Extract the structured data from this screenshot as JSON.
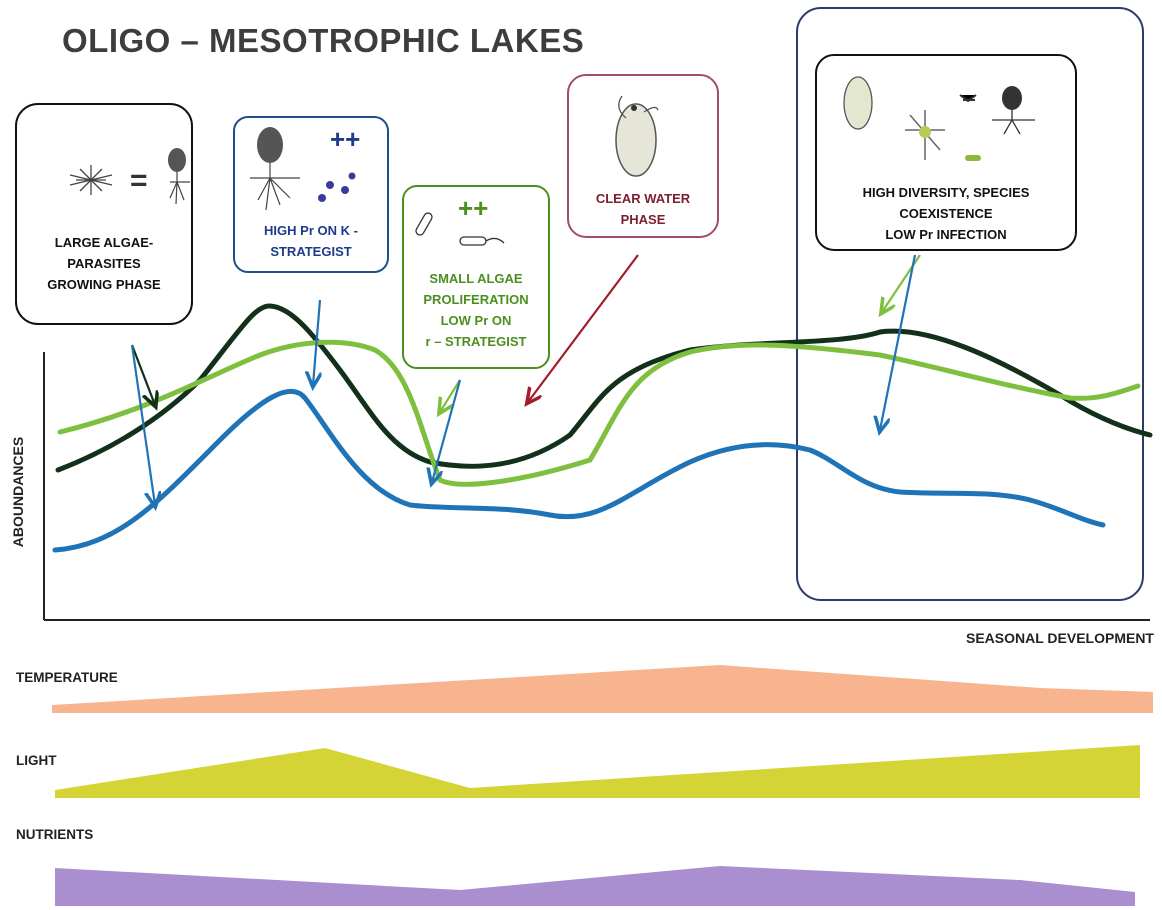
{
  "title": "OLIGO – MESOTROPHIC LAKES",
  "phases": [
    {
      "lines": [
        "LARGE ALGAE-",
        "PARASITES",
        "GROWING PHASE"
      ],
      "color": "#111111",
      "extra": "="
    },
    {
      "lines": [
        "HIGH Pr ON K -",
        "STRATEGIST"
      ],
      "color": "#1f3a8a",
      "extra": "++"
    },
    {
      "lines": [
        "SMALL ALGAE",
        "PROLIFERATION",
        "LOW Pr ON",
        "r – STRATEGIST"
      ],
      "color": "#4c8f1e",
      "extra": "++"
    },
    {
      "lines": [
        "CLEAR WATER",
        "PHASE"
      ],
      "color": "#7a1f2e",
      "extra": ""
    },
    {
      "lines": [
        "HIGH DIVERSITY, SPECIES",
        "COEXISTENCE",
        "LOW Pr INFECTION"
      ],
      "color": "#111111",
      "extra": ""
    }
  ],
  "axes": {
    "y_label": "ABOUNDANCES",
    "x_label": "SEASONAL DEVELOPMENT"
  },
  "curves": [
    {
      "key": "dark_green",
      "color": "#13301a"
    },
    {
      "key": "light_green",
      "color": "#7fbf3f"
    },
    {
      "key": "blue",
      "color": "#1f73b7"
    }
  ],
  "bands": [
    {
      "label": "TEMPERATURE",
      "color": "#f7b48f"
    },
    {
      "label": "LIGHT",
      "color": "#d4d436"
    },
    {
      "label": "NUTRIENTS",
      "color": "#a98fd0"
    }
  ]
}
